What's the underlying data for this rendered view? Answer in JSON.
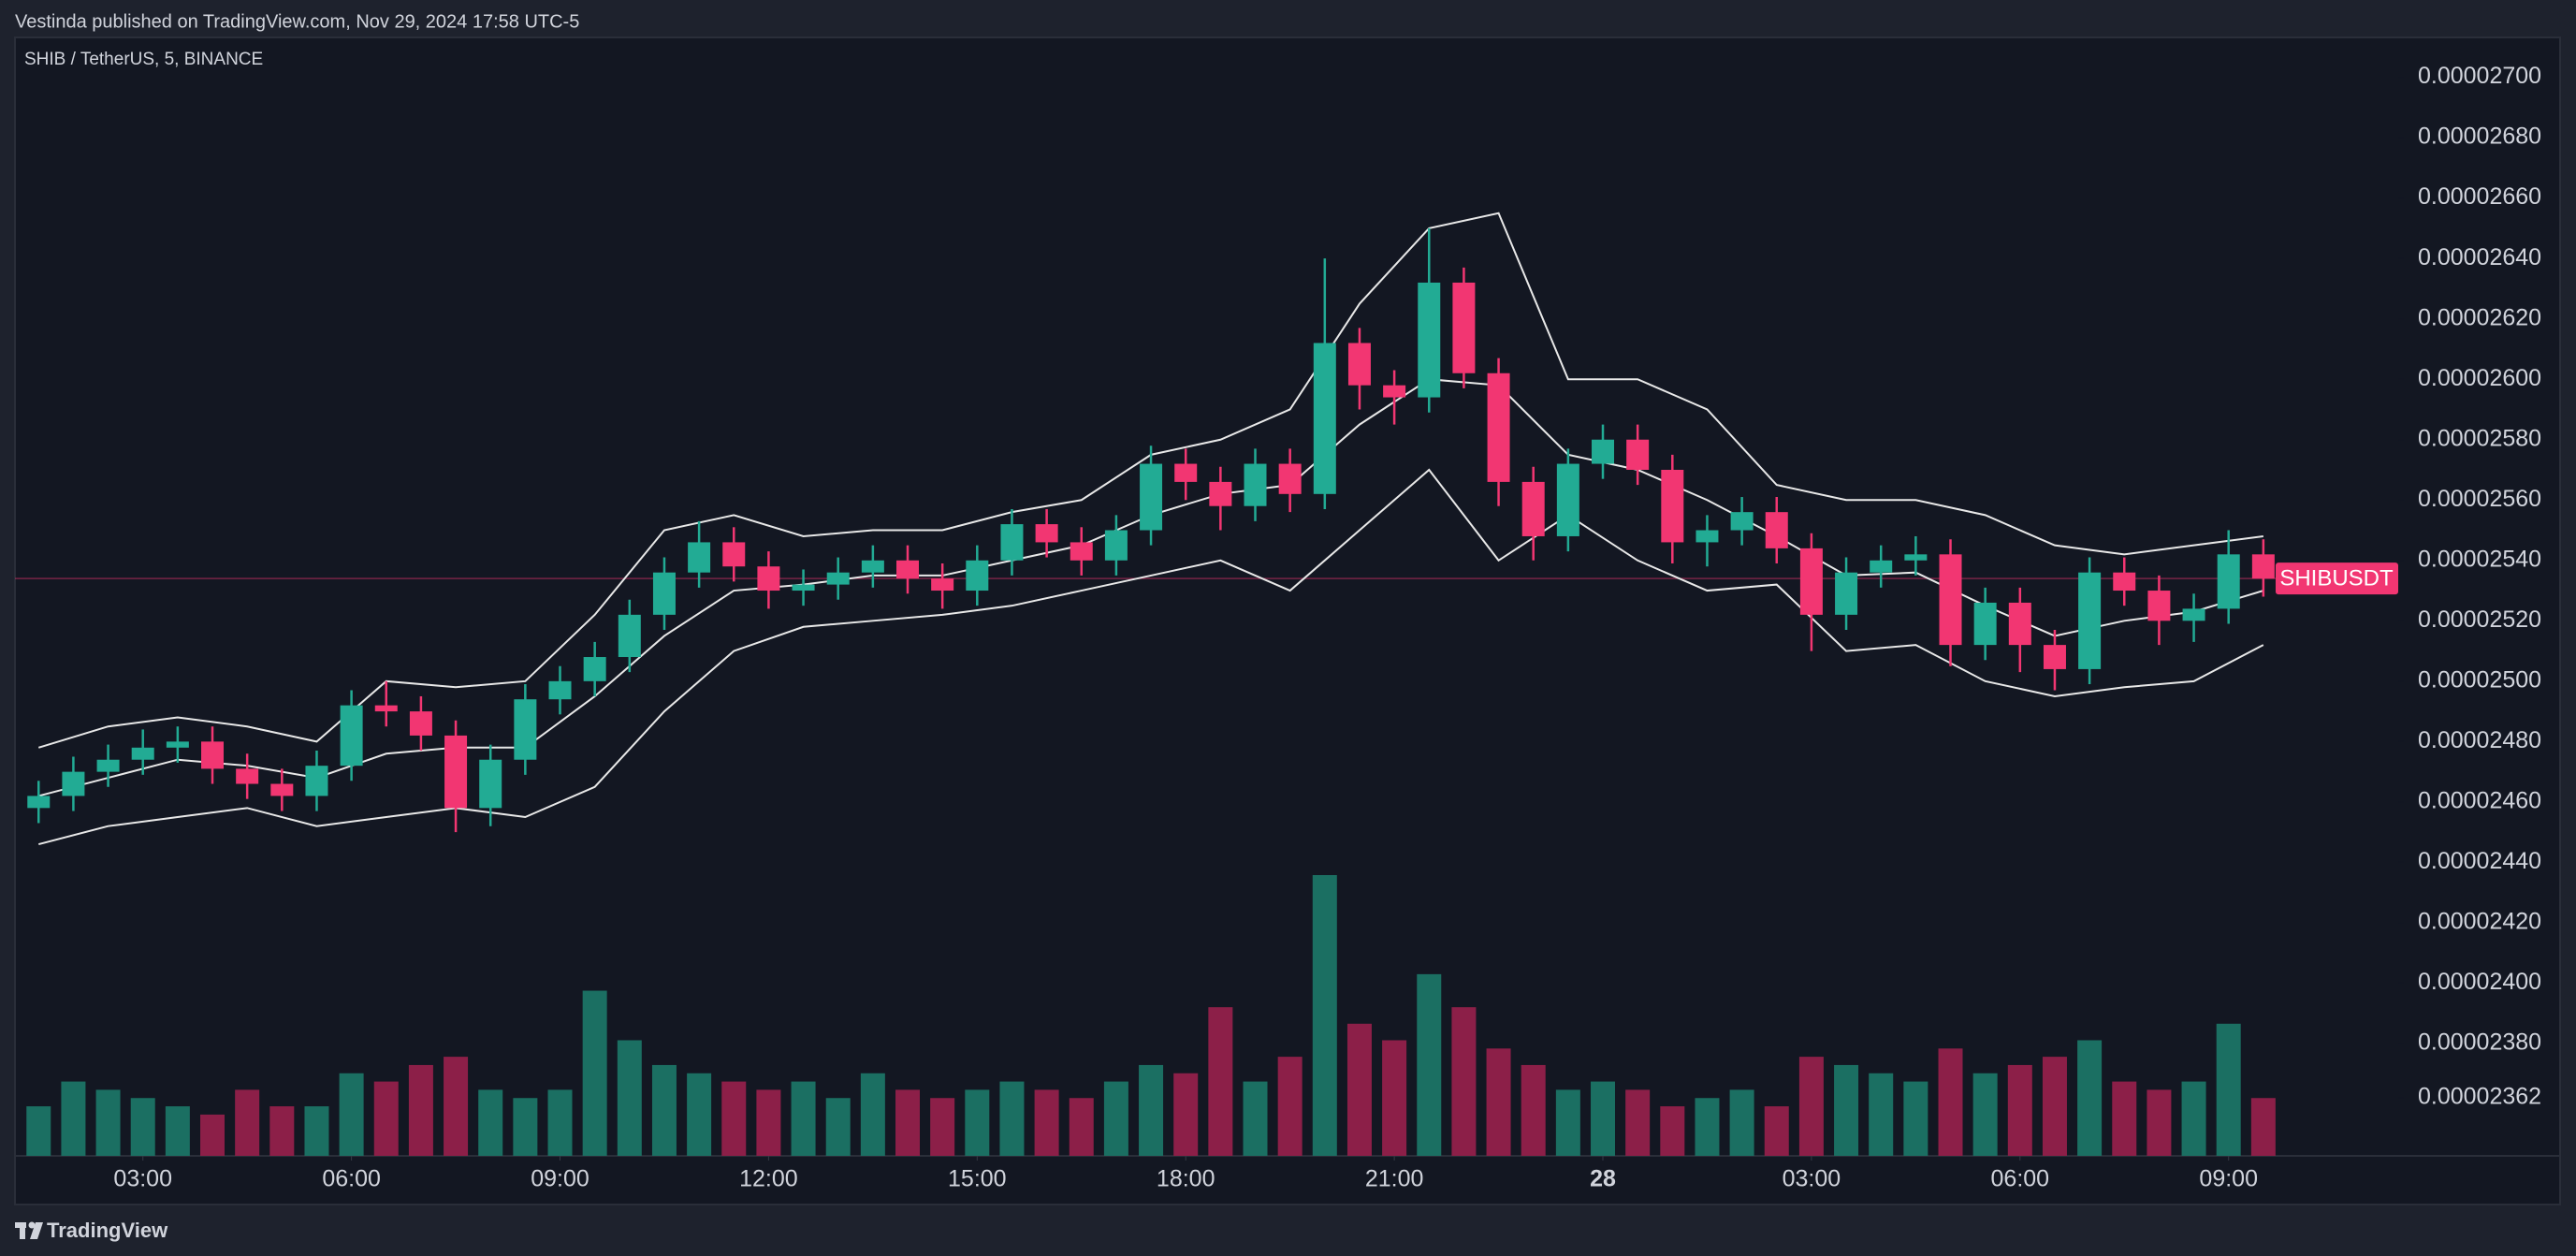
{
  "header": {
    "text": "Vestinda published on TradingView.com, Nov 29, 2024 17:58 UTC-5"
  },
  "footer": {
    "brand": "TradingView"
  },
  "chart_data": {
    "type": "candlestick",
    "title": "SHIB / TetherUS, 5, BINANCE",
    "up_color": "#22ab94",
    "down_color": "#f23672",
    "volume_up_color": "#1b6f62",
    "volume_down_color": "#8c1f48",
    "xlim": [
      1.16,
      35.44
    ],
    "xticks": [
      {
        "value": 3,
        "label": "03:00"
      },
      {
        "value": 6,
        "label": "06:00"
      },
      {
        "value": 9,
        "label": "09:00"
      },
      {
        "value": 12,
        "label": "12:00"
      },
      {
        "value": 15,
        "label": "15:00"
      },
      {
        "value": 18,
        "label": "18:00"
      },
      {
        "value": 21,
        "label": "21:00"
      },
      {
        "value": 24,
        "label": "28",
        "bold": true
      },
      {
        "value": 27,
        "label": "03:00"
      },
      {
        "value": 30,
        "label": "06:00"
      },
      {
        "value": 33,
        "label": "09:00"
      }
    ],
    "ylim": [
      2.3428e-05,
      2.7132e-05
    ],
    "yticks": [
      {
        "value": 2.7e-05,
        "label": "0.00002700"
      },
      {
        "value": 2.68e-05,
        "label": "0.00002680"
      },
      {
        "value": 2.66e-05,
        "label": "0.00002660"
      },
      {
        "value": 2.64e-05,
        "label": "0.00002640"
      },
      {
        "value": 2.62e-05,
        "label": "0.00002620"
      },
      {
        "value": 2.6e-05,
        "label": "0.00002600"
      },
      {
        "value": 2.58e-05,
        "label": "0.00002580"
      },
      {
        "value": 2.56e-05,
        "label": "0.00002560"
      },
      {
        "value": 2.54e-05,
        "label": "0.00002540"
      },
      {
        "value": 2.52e-05,
        "label": "0.00002520"
      },
      {
        "value": 2.5e-05,
        "label": "0.00002500"
      },
      {
        "value": 2.48e-05,
        "label": "0.00002480"
      },
      {
        "value": 2.46e-05,
        "label": "0.00002460"
      },
      {
        "value": 2.44e-05,
        "label": "0.00002440"
      },
      {
        "value": 2.42e-05,
        "label": "0.00002420"
      },
      {
        "value": 2.4e-05,
        "label": "0.00002400"
      },
      {
        "value": 2.38e-05,
        "label": "0.00002380"
      },
      {
        "value": 2.362e-05,
        "label": "0.00002362"
      }
    ],
    "x": [
      1.5,
      2,
      2.5,
      3,
      3.5,
      4,
      4.5,
      5,
      5.5,
      6,
      6.5,
      7,
      7.5,
      8,
      8.5,
      9,
      9.5,
      10,
      10.5,
      11,
      11.5,
      12,
      12.5,
      13,
      13.5,
      14,
      14.5,
      15,
      15.5,
      16,
      16.5,
      17,
      17.5,
      18,
      18.5,
      19,
      19.5,
      20,
      20.5,
      21,
      21.5,
      22,
      22.5,
      23,
      23.5,
      24,
      24.5,
      25,
      25.5,
      26,
      26.5,
      27,
      27.5,
      28,
      28.5,
      29,
      29.5,
      30,
      30.5,
      31,
      31.5,
      32,
      32.5,
      33,
      33.5
    ],
    "open": [
      2.458e-05,
      2.462e-05,
      2.47e-05,
      2.474e-05,
      2.478e-05,
      2.48e-05,
      2.471e-05,
      2.466e-05,
      2.462e-05,
      2.472e-05,
      2.492e-05,
      2.49e-05,
      2.482e-05,
      2.458e-05,
      2.474e-05,
      2.494e-05,
      2.5e-05,
      2.508e-05,
      2.522e-05,
      2.536e-05,
      2.546e-05,
      2.538e-05,
      2.53e-05,
      2.532e-05,
      2.536e-05,
      2.54e-05,
      2.534e-05,
      2.53e-05,
      2.54e-05,
      2.552e-05,
      2.546e-05,
      2.54e-05,
      2.55e-05,
      2.572e-05,
      2.566e-05,
      2.558e-05,
      2.572e-05,
      2.562e-05,
      2.612e-05,
      2.598e-05,
      2.594e-05,
      2.632e-05,
      2.602e-05,
      2.566e-05,
      2.548e-05,
      2.572e-05,
      2.58e-05,
      2.57e-05,
      2.546e-05,
      2.55e-05,
      2.556e-05,
      2.544e-05,
      2.522e-05,
      2.536e-05,
      2.54e-05,
      2.542e-05,
      2.512e-05,
      2.526e-05,
      2.512e-05,
      2.504e-05,
      2.536e-05,
      2.53e-05,
      2.52e-05,
      2.524e-05,
      2.542e-05
    ],
    "high": [
      2.467e-05,
      2.475e-05,
      2.479e-05,
      2.484e-05,
      2.485e-05,
      2.485e-05,
      2.476e-05,
      2.471e-05,
      2.477e-05,
      2.497e-05,
      2.5e-05,
      2.495e-05,
      2.487e-05,
      2.479e-05,
      2.499e-05,
      2.505e-05,
      2.513e-05,
      2.527e-05,
      2.541e-05,
      2.553e-05,
      2.551e-05,
      2.543e-05,
      2.537e-05,
      2.541e-05,
      2.545e-05,
      2.545e-05,
      2.539e-05,
      2.545e-05,
      2.557e-05,
      2.557e-05,
      2.551e-05,
      2.555e-05,
      2.578e-05,
      2.577e-05,
      2.571e-05,
      2.577e-05,
      2.577e-05,
      2.64e-05,
      2.617e-05,
      2.603e-05,
      2.65e-05,
      2.637e-05,
      2.607e-05,
      2.571e-05,
      2.577e-05,
      2.585e-05,
      2.585e-05,
      2.575e-05,
      2.555e-05,
      2.561e-05,
      2.561e-05,
      2.549e-05,
      2.541e-05,
      2.545e-05,
      2.548e-05,
      2.547e-05,
      2.531e-05,
      2.531e-05,
      2.517e-05,
      2.541e-05,
      2.541e-05,
      2.535e-05,
      2.529e-05,
      2.55e-05,
      2.547e-05
    ],
    "low": [
      2.453e-05,
      2.457e-05,
      2.465e-05,
      2.469e-05,
      2.473e-05,
      2.466e-05,
      2.461e-05,
      2.457e-05,
      2.457e-05,
      2.467e-05,
      2.485e-05,
      2.477e-05,
      2.45e-05,
      2.452e-05,
      2.469e-05,
      2.489e-05,
      2.495e-05,
      2.503e-05,
      2.517e-05,
      2.531e-05,
      2.533e-05,
      2.524e-05,
      2.525e-05,
      2.527e-05,
      2.531e-05,
      2.529e-05,
      2.524e-05,
      2.525e-05,
      2.535e-05,
      2.541e-05,
      2.535e-05,
      2.535e-05,
      2.545e-05,
      2.56e-05,
      2.55e-05,
      2.553e-05,
      2.556e-05,
      2.557e-05,
      2.59e-05,
      2.585e-05,
      2.589e-05,
      2.597e-05,
      2.558e-05,
      2.54e-05,
      2.543e-05,
      2.567e-05,
      2.565e-05,
      2.539e-05,
      2.538e-05,
      2.545e-05,
      2.539e-05,
      2.51e-05,
      2.517e-05,
      2.531e-05,
      2.535e-05,
      2.505e-05,
      2.507e-05,
      2.503e-05,
      2.497e-05,
      2.499e-05,
      2.525e-05,
      2.512e-05,
      2.513e-05,
      2.519e-05,
      2.528e-05
    ],
    "close": [
      2.462e-05,
      2.47e-05,
      2.474e-05,
      2.478e-05,
      2.48e-05,
      2.471e-05,
      2.466e-05,
      2.462e-05,
      2.472e-05,
      2.492e-05,
      2.49e-05,
      2.482e-05,
      2.458e-05,
      2.474e-05,
      2.494e-05,
      2.5e-05,
      2.508e-05,
      2.522e-05,
      2.536e-05,
      2.546e-05,
      2.538e-05,
      2.53e-05,
      2.532e-05,
      2.536e-05,
      2.54e-05,
      2.534e-05,
      2.53e-05,
      2.54e-05,
      2.552e-05,
      2.546e-05,
      2.54e-05,
      2.55e-05,
      2.572e-05,
      2.566e-05,
      2.558e-05,
      2.572e-05,
      2.562e-05,
      2.612e-05,
      2.598e-05,
      2.594e-05,
      2.632e-05,
      2.602e-05,
      2.566e-05,
      2.548e-05,
      2.572e-05,
      2.58e-05,
      2.57e-05,
      2.546e-05,
      2.55e-05,
      2.556e-05,
      2.544e-05,
      2.522e-05,
      2.536e-05,
      2.54e-05,
      2.542e-05,
      2.512e-05,
      2.526e-05,
      2.512e-05,
      2.504e-05,
      2.536e-05,
      2.53e-05,
      2.52e-05,
      2.524e-05,
      2.542e-05,
      2.534e-05
    ],
    "volume": [
      30,
      45,
      40,
      35,
      30,
      25,
      40,
      30,
      30,
      50,
      45,
      55,
      60,
      40,
      35,
      40,
      100,
      70,
      55,
      50,
      45,
      40,
      45,
      35,
      50,
      40,
      35,
      40,
      45,
      40,
      35,
      45,
      55,
      50,
      90,
      45,
      60,
      170,
      80,
      70,
      110,
      90,
      65,
      55,
      40,
      45,
      40,
      30,
      35,
      40,
      30,
      60,
      55,
      50,
      45,
      65,
      50,
      55,
      60,
      70,
      45,
      40,
      45,
      80,
      35
    ],
    "bands": {
      "color": "#e8e8e8",
      "x": [
        1.5,
        2.5,
        3.5,
        4.5,
        5.5,
        6.5,
        7.5,
        8.5,
        9.5,
        10.5,
        11.5,
        12.5,
        13.5,
        14.5,
        15.5,
        16.5,
        17.5,
        18.5,
        19.5,
        20.5,
        21.5,
        22.5,
        23.5,
        24.5,
        25.5,
        26.5,
        27.5,
        28.5,
        29.5,
        30.5,
        31.5,
        32.5,
        33.5
      ],
      "upper": [
        2.478e-05,
        2.485e-05,
        2.488e-05,
        2.485e-05,
        2.48e-05,
        2.5e-05,
        2.498e-05,
        2.5e-05,
        2.522e-05,
        2.55e-05,
        2.555e-05,
        2.548e-05,
        2.55e-05,
        2.55e-05,
        2.556e-05,
        2.56e-05,
        2.575e-05,
        2.58e-05,
        2.59e-05,
        2.625e-05,
        2.65e-05,
        2.655e-05,
        2.6e-05,
        2.6e-05,
        2.59e-05,
        2.565e-05,
        2.56e-05,
        2.56e-05,
        2.555e-05,
        2.545e-05,
        2.542e-05,
        2.545e-05,
        2.548e-05
      ],
      "basis": [
        2.462e-05,
        2.468e-05,
        2.474e-05,
        2.472e-05,
        2.468e-05,
        2.476e-05,
        2.478e-05,
        2.478e-05,
        2.495e-05,
        2.515e-05,
        2.53e-05,
        2.532e-05,
        2.535e-05,
        2.535e-05,
        2.54e-05,
        2.545e-05,
        2.555e-05,
        2.562e-05,
        2.565e-05,
        2.585e-05,
        2.6e-05,
        2.598e-05,
        2.575e-05,
        2.57e-05,
        2.56e-05,
        2.548e-05,
        2.535e-05,
        2.536e-05,
        2.525e-05,
        2.515e-05,
        2.52e-05,
        2.523e-05,
        2.53e-05
      ],
      "lower": [
        2.446e-05,
        2.452e-05,
        2.455e-05,
        2.458e-05,
        2.452e-05,
        2.455e-05,
        2.458e-05,
        2.455e-05,
        2.465e-05,
        2.49e-05,
        2.51e-05,
        2.518e-05,
        2.52e-05,
        2.522e-05,
        2.525e-05,
        2.53e-05,
        2.535e-05,
        2.54e-05,
        2.53e-05,
        2.55e-05,
        2.57e-05,
        2.54e-05,
        2.555e-05,
        2.54e-05,
        2.53e-05,
        2.532e-05,
        2.51e-05,
        2.512e-05,
        2.5e-05,
        2.495e-05,
        2.498e-05,
        2.5e-05,
        2.512e-05
      ]
    },
    "last_price": {
      "value": 2.534e-05,
      "label": "SHIBUSDT",
      "color": "#f23672"
    }
  }
}
